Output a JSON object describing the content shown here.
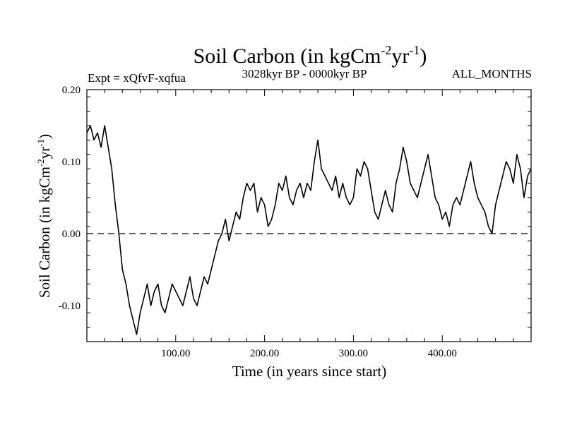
{
  "colors": {
    "background": "#ffffff",
    "axis": "#000000",
    "series": "#000000",
    "zero_line": "#000000"
  },
  "chart_data": {
    "type": "line",
    "title_main": "Soil Carbon (in kgCm",
    "title_exp1": "-2",
    "title_mid": "yr",
    "title_exp2": "-1",
    "title_close": ")",
    "subtitle_left": "Expt = xQfvF-xqfua",
    "subtitle_center": "3028kyr BP - 0000kyr BP",
    "subtitle_right": "ALL_MONTHS",
    "xlabel": "Time (in years since start)",
    "ylabel_main": "Soil Carbon (in kgCm",
    "ylabel_exp1": "-2",
    "ylabel_mid": "yr",
    "ylabel_exp2": "-1",
    "ylabel_close": ")",
    "xlim": [
      0,
      500
    ],
    "ylim": [
      -0.15,
      0.2
    ],
    "xticks_major": [
      100,
      200,
      300,
      400
    ],
    "xtick_labels": [
      "100.00",
      "200.00",
      "300.00",
      "400.00"
    ],
    "xtick_minor_step": 20,
    "yticks_major": [
      -0.1,
      0.0,
      0.1,
      0.2
    ],
    "ytick_labels": [
      "-0.10",
      "0.00",
      "0.10",
      "0.20"
    ],
    "ytick_minor_step": 0.02,
    "reference_line": {
      "y": 0.0,
      "style": "dashed"
    },
    "series": [
      {
        "name": "Soil Carbon",
        "x": [
          0,
          4,
          8,
          12,
          16,
          20,
          24,
          28,
          32,
          36,
          40,
          44,
          48,
          52,
          56,
          60,
          64,
          68,
          72,
          76,
          80,
          84,
          88,
          92,
          96,
          100,
          104,
          108,
          112,
          116,
          120,
          124,
          128,
          132,
          136,
          140,
          144,
          148,
          152,
          156,
          160,
          164,
          168,
          172,
          176,
          180,
          184,
          188,
          192,
          196,
          200,
          204,
          208,
          212,
          216,
          220,
          224,
          228,
          232,
          236,
          240,
          244,
          248,
          252,
          256,
          260,
          264,
          268,
          272,
          276,
          280,
          284,
          288,
          292,
          296,
          300,
          304,
          308,
          312,
          316,
          320,
          324,
          328,
          332,
          336,
          340,
          344,
          348,
          352,
          356,
          360,
          364,
          368,
          372,
          376,
          380,
          384,
          388,
          392,
          396,
          400,
          404,
          408,
          412,
          416,
          420,
          424,
          428,
          432,
          436,
          440,
          444,
          448,
          452,
          456,
          460,
          464,
          468,
          472,
          476,
          480,
          484,
          488,
          492,
          496,
          500
        ],
        "values": [
          0.14,
          0.15,
          0.13,
          0.14,
          0.12,
          0.15,
          0.12,
          0.09,
          0.04,
          0.0,
          -0.05,
          -0.07,
          -0.1,
          -0.12,
          -0.14,
          -0.11,
          -0.09,
          -0.07,
          -0.1,
          -0.08,
          -0.07,
          -0.1,
          -0.11,
          -0.09,
          -0.07,
          -0.08,
          -0.09,
          -0.1,
          -0.08,
          -0.06,
          -0.09,
          -0.1,
          -0.08,
          -0.06,
          -0.07,
          -0.05,
          -0.03,
          -0.01,
          0.0,
          0.02,
          -0.01,
          0.01,
          0.03,
          0.02,
          0.05,
          0.07,
          0.06,
          0.07,
          0.03,
          0.05,
          0.04,
          0.01,
          0.02,
          0.04,
          0.07,
          0.06,
          0.08,
          0.05,
          0.04,
          0.06,
          0.07,
          0.05,
          0.07,
          0.06,
          0.1,
          0.13,
          0.09,
          0.08,
          0.07,
          0.06,
          0.08,
          0.05,
          0.07,
          0.05,
          0.04,
          0.05,
          0.09,
          0.08,
          0.1,
          0.09,
          0.06,
          0.03,
          0.02,
          0.04,
          0.06,
          0.04,
          0.03,
          0.07,
          0.09,
          0.12,
          0.1,
          0.07,
          0.06,
          0.05,
          0.07,
          0.09,
          0.11,
          0.08,
          0.05,
          0.04,
          0.02,
          0.03,
          0.01,
          0.04,
          0.05,
          0.04,
          0.06,
          0.08,
          0.1,
          0.07,
          0.05,
          0.04,
          0.03,
          0.01,
          0.0,
          0.04,
          0.06,
          0.08,
          0.1,
          0.09,
          0.07,
          0.11,
          0.09,
          0.05,
          0.08,
          0.09
        ]
      }
    ]
  }
}
